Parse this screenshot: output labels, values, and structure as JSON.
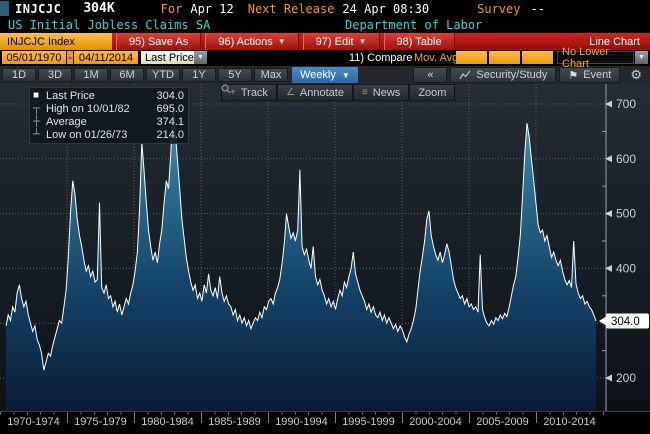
{
  "header": {
    "ticker": "INJCJC",
    "value": "304K",
    "for_label": "For",
    "for_date": "Apr 12",
    "next_release_label": "Next Release",
    "next_release_value": "24 Apr 08:30",
    "survey_label": "Survey",
    "survey_value": "--"
  },
  "title_bar": {
    "security_name": "US Initial Jobless Claims SA",
    "source": "Department of Labor"
  },
  "menu_bar": {
    "ticker_tab": "INJCJC Index",
    "save_as": "95) Save As",
    "actions": "96) Actions",
    "edit": "97) Edit",
    "table": "98) Table",
    "chart_type": "Line Chart"
  },
  "filter_bar": {
    "start_date": "05/01/1970",
    "date_separator": "-",
    "end_date": "04/11/2014",
    "price_field": "Last Price",
    "compare": "11) Compare",
    "mov_avgs": "Mov. Avgs",
    "lower_chart": "No Lower Chart"
  },
  "range_tabs": {
    "tabs": [
      "1D",
      "3D",
      "1M",
      "6M",
      "YTD",
      "1Y",
      "5Y",
      "Max"
    ],
    "period": "Weekly",
    "security_study": "Security/Study",
    "event": "Event"
  },
  "chart_toolbar": {
    "track": "Track",
    "annotate": "Annotate",
    "news": "News",
    "zoom": "Zoom"
  },
  "icons": {
    "collapse": "«",
    "dropdown": "▼",
    "flag": "⚑",
    "gear": "⚙",
    "track": "+",
    "annotate": "∠",
    "news": "≡"
  },
  "legend": {
    "rows": [
      {
        "glyph": "■",
        "label": "Last Price",
        "value": "304.0"
      },
      {
        "glyph": "┬",
        "label": "High on 10/01/82",
        "value": "695.0"
      },
      {
        "glyph": "┼",
        "label": "Average",
        "value": "374.1"
      },
      {
        "glyph": "┴",
        "label": "Low on 01/26/73",
        "value": "214.0"
      }
    ]
  },
  "colors": {
    "amber": "#f0a22e",
    "menu_red": "#b5170f",
    "title_cyan": "#31d8d8",
    "label_orange": "#ff9328",
    "period_blue": "#3d7cba",
    "line_white": "#ffffff",
    "area_teal_top": "#5493ae",
    "area_navy_bottom": "#0a1c36",
    "grid_gray": "#566069",
    "axis_text": "#c8cfd5"
  },
  "chart_data": {
    "type": "area",
    "title": "US Initial Jobless Claims SA",
    "x_start": 1970.33,
    "x_end": 2014.28,
    "x_labels": [
      "1970-1974",
      "1975-1979",
      "1980-1984",
      "1985-1989",
      "1990-1994",
      "1995-1999",
      "2000-2004",
      "2005-2009",
      "2010-2014"
    ],
    "y_ticks": [
      200,
      300,
      400,
      500,
      600,
      700
    ],
    "ylim": [
      140,
      730
    ],
    "grid": true,
    "legend_position": "top-left",
    "last_price": 304.0,
    "high": {
      "date": "10/01/82",
      "value": 695.0
    },
    "average": 374.1,
    "low": {
      "date": "01/26/73",
      "value": 214.0
    },
    "values": [
      295,
      315,
      305,
      330,
      320,
      355,
      370,
      345,
      330,
      340,
      315,
      300,
      285,
      295,
      270,
      260,
      245,
      214,
      230,
      245,
      240,
      260,
      275,
      290,
      305,
      300,
      330,
      360,
      420,
      505,
      560,
      535,
      490,
      460,
      440,
      415,
      395,
      405,
      385,
      395,
      375,
      380,
      520,
      365,
      355,
      370,
      345,
      350,
      330,
      340,
      320,
      335,
      315,
      330,
      345,
      335,
      355,
      370,
      395,
      430,
      510,
      630,
      580,
      520,
      470,
      440,
      415,
      430,
      410,
      445,
      470,
      520,
      560,
      545,
      610,
      695,
      650,
      600,
      545,
      490,
      455,
      420,
      395,
      375,
      360,
      370,
      345,
      355,
      340,
      370,
      355,
      390,
      360,
      350,
      365,
      345,
      385,
      355,
      340,
      350,
      335,
      330,
      315,
      325,
      305,
      315,
      300,
      310,
      295,
      305,
      290,
      300,
      310,
      305,
      320,
      310,
      330,
      325,
      340,
      345,
      335,
      355,
      365,
      380,
      410,
      445,
      500,
      475,
      455,
      465,
      450,
      470,
      580,
      440,
      425,
      435,
      415,
      400,
      440,
      385,
      370,
      380,
      360,
      350,
      335,
      345,
      330,
      340,
      325,
      345,
      360,
      350,
      375,
      365,
      385,
      400,
      430,
      390,
      375,
      360,
      350,
      340,
      325,
      335,
      320,
      330,
      315,
      310,
      320,
      305,
      315,
      300,
      310,
      300,
      290,
      298,
      285,
      295,
      288,
      275,
      266,
      280,
      290,
      305,
      325,
      360,
      395,
      420,
      450,
      490,
      505,
      460,
      440,
      425,
      415,
      430,
      410,
      425,
      445,
      430,
      405,
      380,
      365,
      355,
      345,
      350,
      335,
      345,
      330,
      335,
      325,
      330,
      320,
      425,
      325,
      310,
      300,
      295,
      305,
      298,
      310,
      305,
      315,
      308,
      318,
      312,
      330,
      350,
      370,
      385,
      420,
      460,
      530,
      610,
      665,
      640,
      600,
      560,
      520,
      480,
      465,
      470,
      450,
      460,
      440,
      420,
      430,
      415,
      405,
      415,
      395,
      380,
      370,
      378,
      365,
      450,
      372,
      355,
      345,
      350,
      335,
      340,
      330,
      325,
      315,
      304
    ]
  }
}
